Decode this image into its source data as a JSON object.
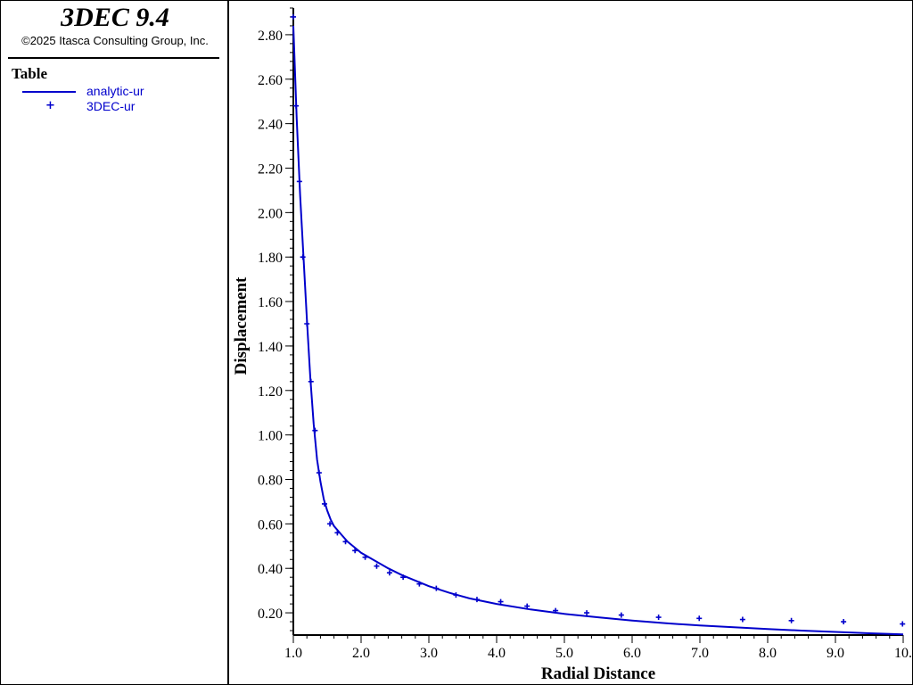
{
  "header": {
    "app_title": "3DEC 9.4",
    "copyright": "©2025 Itasca Consulting Group, Inc."
  },
  "legend": {
    "title": "Table",
    "items": [
      {
        "label": "analytic-ur",
        "marker": "line",
        "color": "#0000cc"
      },
      {
        "label": "3DEC-ur",
        "marker": "plus",
        "color": "#0000cc"
      }
    ]
  },
  "chart_data": {
    "type": "line",
    "xlabel": "Radial Distance",
    "ylabel": "Displacement",
    "xlim": [
      1.0,
      10.0
    ],
    "ylim": [
      0.1,
      2.92
    ],
    "x_ticks": [
      "1.0",
      "2.0",
      "3.0",
      "4.0",
      "5.0",
      "6.0",
      "7.0",
      "8.0",
      "9.0",
      "10."
    ],
    "y_ticks": [
      "0.20",
      "0.40",
      "0.60",
      "0.80",
      "1.00",
      "1.20",
      "1.40",
      "1.60",
      "1.80",
      "2.00",
      "2.20",
      "2.40",
      "2.60",
      "2.80"
    ],
    "grid": false,
    "legend_position": "left-panel",
    "series": [
      {
        "name": "analytic-ur",
        "style": "line",
        "color": "#0000cc",
        "x": [
          1.0,
          1.05,
          1.1,
          1.15,
          1.2,
          1.25,
          1.3,
          1.35,
          1.4,
          1.45,
          1.5,
          1.55,
          1.6,
          1.7,
          1.8,
          1.9,
          2.0,
          2.2,
          2.4,
          2.6,
          2.8,
          3.0,
          3.3,
          3.6,
          4.0,
          4.5,
          5.0,
          5.5,
          6.0,
          6.5,
          7.0,
          7.5,
          8.0,
          8.5,
          9.0,
          9.5,
          10.0
        ],
        "y": [
          2.84,
          2.42,
          2.08,
          1.8,
          1.52,
          1.26,
          1.05,
          0.89,
          0.79,
          0.71,
          0.66,
          0.62,
          0.59,
          0.555,
          0.52,
          0.495,
          0.47,
          0.435,
          0.4,
          0.37,
          0.345,
          0.32,
          0.29,
          0.265,
          0.24,
          0.215,
          0.195,
          0.18,
          0.165,
          0.153,
          0.143,
          0.135,
          0.127,
          0.12,
          0.114,
          0.108,
          0.103
        ]
      },
      {
        "name": "3DEC-ur",
        "style": "marker",
        "color": "#0000cc",
        "x": [
          1.0,
          1.04,
          1.09,
          1.14,
          1.2,
          1.26,
          1.32,
          1.38,
          1.46,
          1.54,
          1.65,
          1.77,
          1.91,
          2.06,
          2.23,
          2.42,
          2.62,
          2.86,
          3.11,
          3.4,
          3.71,
          4.06,
          4.45,
          4.87,
          5.33,
          5.84,
          6.39,
          6.99,
          7.63,
          8.35,
          9.12,
          9.99
        ],
        "y": [
          2.88,
          2.48,
          2.14,
          1.8,
          1.5,
          1.24,
          1.02,
          0.83,
          0.69,
          0.6,
          0.56,
          0.52,
          0.48,
          0.45,
          0.41,
          0.38,
          0.36,
          0.33,
          0.31,
          0.28,
          0.26,
          0.25,
          0.23,
          0.21,
          0.2,
          0.19,
          0.18,
          0.175,
          0.17,
          0.165,
          0.16,
          0.15
        ]
      }
    ]
  }
}
